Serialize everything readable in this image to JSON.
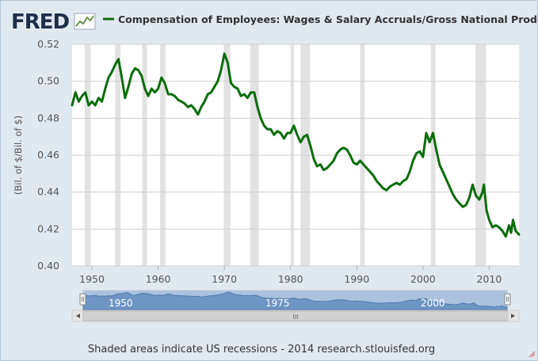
{
  "brand": {
    "logo_text": "FRED",
    "line_color": "#0b6d0b"
  },
  "legend_label": "Compensation of Employees: Wages & Salary Accruals/Gross National Product",
  "footer": {
    "note": "Shaded areas indicate US recessions - 2014 research.stlouisfed.org"
  },
  "navigator": {
    "year_labels": [
      "1950",
      "1975",
      "2000"
    ],
    "grip": "III"
  },
  "chart_data": {
    "type": "line",
    "title": "Compensation of Employees: Wages & Salary Accruals/Gross National Product",
    "ylabel": "(Bil. of $/Bil. of $)",
    "xlim": [
      1947.0,
      2014.5
    ],
    "ylim": [
      0.4,
      0.52
    ],
    "x_ticks": [
      1950,
      1960,
      1970,
      1980,
      1990,
      2000,
      2010
    ],
    "x_tick_labels": [
      "1950",
      "1960",
      "1970",
      "1980",
      "1990",
      "2000",
      "2010"
    ],
    "y_ticks": [
      0.4,
      0.42,
      0.44,
      0.46,
      0.48,
      0.5,
      0.52
    ],
    "y_tick_labels": [
      "0.40",
      "0.42",
      "0.44",
      "0.46",
      "0.48",
      "0.50",
      "0.52"
    ],
    "grid": "horizontal",
    "recession_shading": [
      [
        1948.9,
        1949.8
      ],
      [
        1953.5,
        1954.3
      ],
      [
        1957.6,
        1958.3
      ],
      [
        1960.3,
        1961.1
      ],
      [
        1969.9,
        1970.9
      ],
      [
        1973.9,
        1975.2
      ],
      [
        1980.0,
        1980.5
      ],
      [
        1981.5,
        1982.9
      ],
      [
        1990.5,
        1991.2
      ],
      [
        2001.2,
        2001.9
      ],
      [
        2007.9,
        2009.5
      ]
    ],
    "series": [
      {
        "color": "#0b6d0b",
        "points": [
          [
            1947.0,
            0.487
          ],
          [
            1947.5,
            0.494
          ],
          [
            1948.0,
            0.489
          ],
          [
            1948.5,
            0.492
          ],
          [
            1949.0,
            0.494
          ],
          [
            1949.5,
            0.487
          ],
          [
            1950.0,
            0.489
          ],
          [
            1950.5,
            0.487
          ],
          [
            1951.0,
            0.491
          ],
          [
            1951.5,
            0.489
          ],
          [
            1952.0,
            0.496
          ],
          [
            1952.5,
            0.502
          ],
          [
            1953.0,
            0.505
          ],
          [
            1953.5,
            0.509
          ],
          [
            1954.0,
            0.512
          ],
          [
            1954.5,
            0.502
          ],
          [
            1955.0,
            0.491
          ],
          [
            1955.5,
            0.497
          ],
          [
            1956.0,
            0.504
          ],
          [
            1956.5,
            0.507
          ],
          [
            1957.0,
            0.506
          ],
          [
            1957.5,
            0.503
          ],
          [
            1958.0,
            0.496
          ],
          [
            1958.5,
            0.492
          ],
          [
            1959.0,
            0.496
          ],
          [
            1959.5,
            0.494
          ],
          [
            1960.0,
            0.496
          ],
          [
            1960.5,
            0.502
          ],
          [
            1961.0,
            0.499
          ],
          [
            1961.5,
            0.493
          ],
          [
            1962.0,
            0.493
          ],
          [
            1962.5,
            0.492
          ],
          [
            1963.0,
            0.49
          ],
          [
            1963.5,
            0.489
          ],
          [
            1964.0,
            0.488
          ],
          [
            1964.5,
            0.486
          ],
          [
            1965.0,
            0.487
          ],
          [
            1965.5,
            0.485
          ],
          [
            1966.0,
            0.482
          ],
          [
            1966.5,
            0.486
          ],
          [
            1967.0,
            0.489
          ],
          [
            1967.5,
            0.493
          ],
          [
            1968.0,
            0.494
          ],
          [
            1968.5,
            0.497
          ],
          [
            1969.0,
            0.5
          ],
          [
            1969.5,
            0.506
          ],
          [
            1970.0,
            0.515
          ],
          [
            1970.5,
            0.51
          ],
          [
            1971.0,
            0.499
          ],
          [
            1971.5,
            0.497
          ],
          [
            1972.0,
            0.496
          ],
          [
            1972.5,
            0.492
          ],
          [
            1973.0,
            0.493
          ],
          [
            1973.5,
            0.491
          ],
          [
            1974.0,
            0.494
          ],
          [
            1974.5,
            0.494
          ],
          [
            1975.0,
            0.486
          ],
          [
            1975.5,
            0.48
          ],
          [
            1976.0,
            0.476
          ],
          [
            1976.5,
            0.474
          ],
          [
            1977.0,
            0.474
          ],
          [
            1977.5,
            0.471
          ],
          [
            1978.0,
            0.473
          ],
          [
            1978.5,
            0.472
          ],
          [
            1979.0,
            0.469
          ],
          [
            1979.5,
            0.472
          ],
          [
            1980.0,
            0.472
          ],
          [
            1980.5,
            0.476
          ],
          [
            1981.0,
            0.471
          ],
          [
            1981.5,
            0.467
          ],
          [
            1982.0,
            0.47
          ],
          [
            1982.5,
            0.471
          ],
          [
            1983.0,
            0.465
          ],
          [
            1983.5,
            0.458
          ],
          [
            1984.0,
            0.454
          ],
          [
            1984.5,
            0.455
          ],
          [
            1985.0,
            0.452
          ],
          [
            1985.5,
            0.453
          ],
          [
            1986.0,
            0.455
          ],
          [
            1986.5,
            0.457
          ],
          [
            1987.0,
            0.461
          ],
          [
            1987.5,
            0.463
          ],
          [
            1988.0,
            0.464
          ],
          [
            1988.5,
            0.463
          ],
          [
            1989.0,
            0.46
          ],
          [
            1989.5,
            0.456
          ],
          [
            1990.0,
            0.455
          ],
          [
            1990.5,
            0.457
          ],
          [
            1991.0,
            0.455
          ],
          [
            1991.5,
            0.453
          ],
          [
            1992.0,
            0.451
          ],
          [
            1992.5,
            0.449
          ],
          [
            1993.0,
            0.446
          ],
          [
            1993.5,
            0.444
          ],
          [
            1994.0,
            0.442
          ],
          [
            1994.5,
            0.441
          ],
          [
            1995.0,
            0.443
          ],
          [
            1995.5,
            0.444
          ],
          [
            1996.0,
            0.445
          ],
          [
            1996.5,
            0.444
          ],
          [
            1997.0,
            0.446
          ],
          [
            1997.5,
            0.447
          ],
          [
            1998.0,
            0.451
          ],
          [
            1998.5,
            0.457
          ],
          [
            1999.0,
            0.461
          ],
          [
            1999.5,
            0.462
          ],
          [
            2000.0,
            0.459
          ],
          [
            2000.5,
            0.472
          ],
          [
            2001.0,
            0.467
          ],
          [
            2001.5,
            0.472
          ],
          [
            2002.0,
            0.463
          ],
          [
            2002.5,
            0.455
          ],
          [
            2003.0,
            0.451
          ],
          [
            2003.5,
            0.447
          ],
          [
            2004.0,
            0.443
          ],
          [
            2004.5,
            0.439
          ],
          [
            2005.0,
            0.436
          ],
          [
            2005.5,
            0.434
          ],
          [
            2006.0,
            0.432
          ],
          [
            2006.5,
            0.433
          ],
          [
            2007.0,
            0.437
          ],
          [
            2007.5,
            0.444
          ],
          [
            2008.0,
            0.438
          ],
          [
            2008.5,
            0.436
          ],
          [
            2009.0,
            0.44
          ],
          [
            2009.2,
            0.444
          ],
          [
            2009.6,
            0.43
          ],
          [
            2010.0,
            0.425
          ],
          [
            2010.5,
            0.421
          ],
          [
            2011.0,
            0.422
          ],
          [
            2011.5,
            0.421
          ],
          [
            2012.0,
            0.419
          ],
          [
            2012.5,
            0.416
          ],
          [
            2013.0,
            0.422
          ],
          [
            2013.3,
            0.418
          ],
          [
            2013.6,
            0.425
          ],
          [
            2014.0,
            0.419
          ],
          [
            2014.5,
            0.417
          ]
        ]
      }
    ]
  }
}
